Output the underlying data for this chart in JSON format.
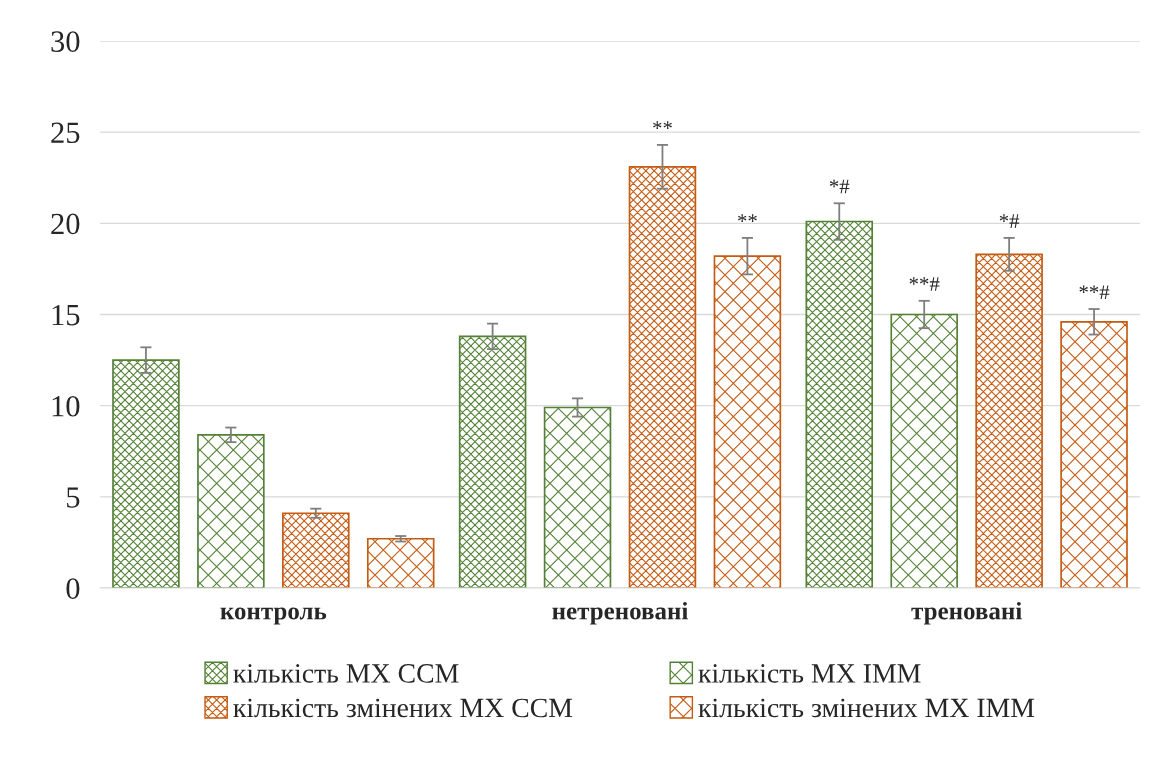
{
  "chart_data": {
    "type": "bar",
    "categories": [
      "контроль",
      "нетреновані",
      "треновані"
    ],
    "series": [
      {
        "name": "кількість МХ ССМ",
        "color": "#538135",
        "values": [
          12.5,
          13.8,
          20.1
        ],
        "errors": [
          0.7,
          0.7,
          1.0
        ],
        "value_labels": [
          null,
          null,
          "*#"
        ]
      },
      {
        "name": "кількість МХ ІММ",
        "color": "#538135",
        "values": [
          8.4,
          9.9,
          15.0
        ],
        "errors": [
          0.4,
          0.5,
          0.75
        ],
        "value_labels": [
          null,
          null,
          "**#"
        ]
      },
      {
        "name": "кількість змінених МХ ССМ",
        "color": "#c55a11",
        "values": [
          4.1,
          23.1,
          18.3
        ],
        "errors": [
          0.25,
          1.2,
          0.9
        ],
        "value_labels": [
          null,
          "**",
          "*#"
        ]
      },
      {
        "name": "кількість змінених МХ ІММ",
        "color": "#c55a11",
        "values": [
          2.7,
          18.2,
          14.6
        ],
        "errors": [
          0.15,
          1.0,
          0.7
        ],
        "value_labels": [
          null,
          "**",
          "**#"
        ]
      }
    ],
    "ylim": [
      0,
      30
    ],
    "yticks": [
      0,
      5,
      10,
      15,
      20,
      25,
      30
    ],
    "grid": "y",
    "legend": "bottom"
  }
}
